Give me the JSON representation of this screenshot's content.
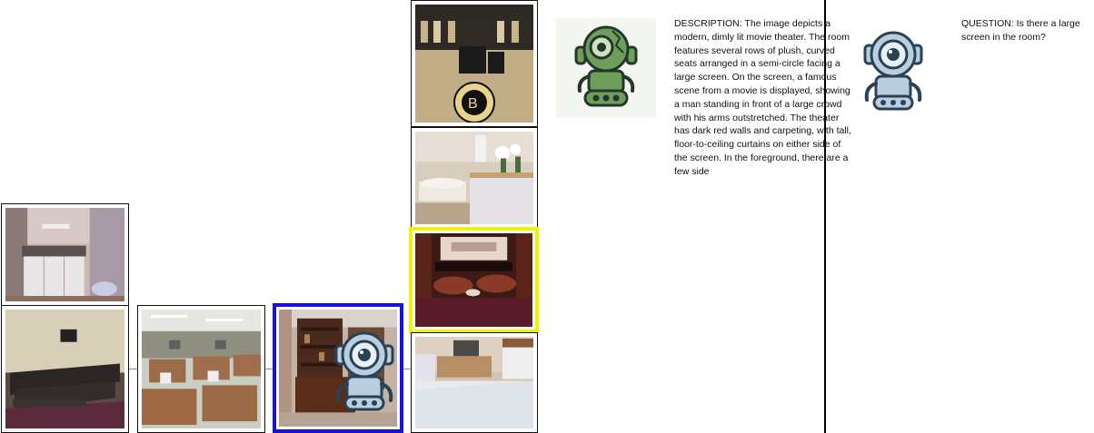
{
  "panels": {
    "description": {
      "text": "DESCRIPTION: The image depicts a modern, dimly lit movie theater. The room features several rows of plush, curved seats arranged in a semi-circle facing a large screen. On the screen, a famous scene from a movie is displayed, showing a man standing in front of a large crowd with his arms outstretched. The theater has dark red walls and carpeting, with tall, floor-to-ceiling curtains on either side of the screen. In the foreground, there are a few side"
    },
    "question": {
      "text": "QUESTION: Is there a large screen in the room?"
    }
  },
  "icons": {
    "describer_robot": "green-robot-icon",
    "questioner_robot": "blue-robot-icon",
    "current_robot": "blue-robot-icon"
  },
  "colors": {
    "selected_outline": "#1414d8",
    "target_outline": "#f3f000",
    "green_robot": "#6e9e5c",
    "blue_robot": "#b9cfdf",
    "robot_outline": "#2a4256"
  }
}
